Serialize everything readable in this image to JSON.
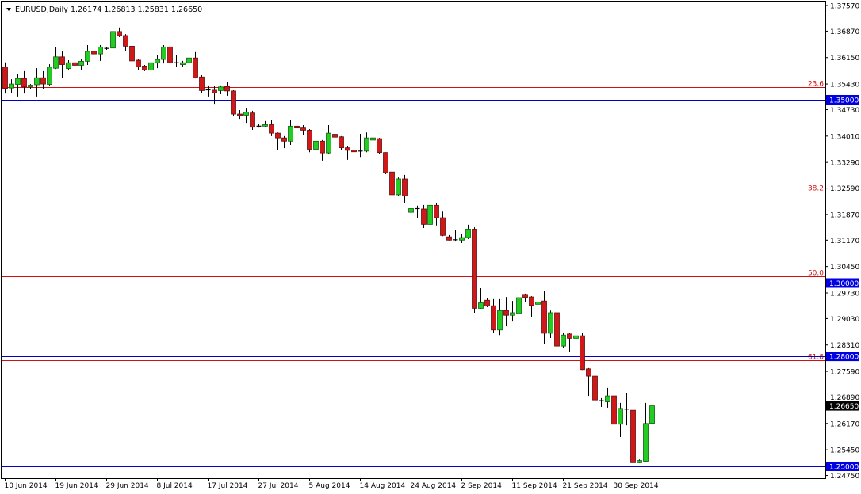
{
  "header": {
    "symbol": "EURUSD,Daily",
    "ohlc_text": "1.26174 1.26813 1.25831 1.26650"
  },
  "colors": {
    "bull": "#22cc22",
    "bear": "#d01818",
    "wick": "#000000",
    "fib_line": "#d01010",
    "level_line": "#0000c8",
    "level_label_bg": "#0000e0",
    "price_label_bg": "#000000"
  },
  "chart_data": {
    "type": "candlestick",
    "title": "EURUSD,Daily",
    "ylim": [
      1.2475,
      1.3757
    ],
    "grid": false,
    "y_ticks": [
      "1.37570",
      "1.36870",
      "1.36150",
      "1.35430",
      "1.34730",
      "1.34010",
      "1.33290",
      "1.32590",
      "1.31870",
      "1.31170",
      "1.30450",
      "1.29730",
      "1.29030",
      "1.28310",
      "1.27590",
      "1.26890",
      "1.26170",
      "1.25450",
      "1.24750"
    ],
    "x_ticks": [
      {
        "bar": 0,
        "label": "10 Jun 2014"
      },
      {
        "bar": 8,
        "label": "19 Jun 2014"
      },
      {
        "bar": 16,
        "label": "29 Jun 2014"
      },
      {
        "bar": 24,
        "label": "8 Jul 2014"
      },
      {
        "bar": 32,
        "label": "17 Jul 2014"
      },
      {
        "bar": 40,
        "label": "27 Jul 2014"
      },
      {
        "bar": 48,
        "label": "5 Aug 2014"
      },
      {
        "bar": 56,
        "label": "14 Aug 2014"
      },
      {
        "bar": 64,
        "label": "24 Aug 2014"
      },
      {
        "bar": 72,
        "label": "2 Sep 2014"
      },
      {
        "bar": 80,
        "label": "11 Sep 2014"
      },
      {
        "bar": 88,
        "label": "21 Sep 2014"
      },
      {
        "bar": 96,
        "label": "30 Sep 2014"
      }
    ],
    "fib_levels": [
      {
        "label": "23.6",
        "price": 1.3535
      },
      {
        "label": "38.2",
        "price": 1.3249
      },
      {
        "label": "50.0",
        "price": 1.3018
      },
      {
        "label": "61.8",
        "price": 1.2789
      }
    ],
    "horizontal_levels": [
      {
        "label": "1.35000",
        "price": 1.35
      },
      {
        "label": "1.30000",
        "price": 1.3
      },
      {
        "label": "1.28000",
        "price": 1.28
      },
      {
        "label": "1.25000",
        "price": 1.25
      }
    ],
    "current_price": {
      "label": "1.26650",
      "price": 1.2665
    },
    "ohlc": [
      [
        1.3589,
        1.3602,
        1.3517,
        1.3531
      ],
      [
        1.3532,
        1.3556,
        1.3519,
        1.3543
      ],
      [
        1.3542,
        1.3571,
        1.3509,
        1.3558
      ],
      [
        1.3558,
        1.3578,
        1.3517,
        1.3535
      ],
      [
        1.3535,
        1.3543,
        1.3528,
        1.354
      ],
      [
        1.3541,
        1.3586,
        1.3509,
        1.356
      ],
      [
        1.356,
        1.3578,
        1.353,
        1.3543
      ],
      [
        1.3542,
        1.3597,
        1.3539,
        1.3589
      ],
      [
        1.3586,
        1.3643,
        1.3584,
        1.3617
      ],
      [
        1.3617,
        1.3632,
        1.356,
        1.3596
      ],
      [
        1.3585,
        1.3608,
        1.358,
        1.3601
      ],
      [
        1.3601,
        1.3612,
        1.3571,
        1.3594
      ],
      [
        1.3594,
        1.3612,
        1.358,
        1.3605
      ],
      [
        1.3605,
        1.3649,
        1.3595,
        1.3632
      ],
      [
        1.3632,
        1.3647,
        1.3573,
        1.3625
      ],
      [
        1.3625,
        1.3649,
        1.3606,
        1.3644
      ],
      [
        1.364,
        1.3644,
        1.3636,
        1.3639
      ],
      [
        1.3641,
        1.3697,
        1.3634,
        1.3686
      ],
      [
        1.3686,
        1.3697,
        1.3671,
        1.3675
      ],
      [
        1.3675,
        1.3679,
        1.3632,
        1.3646
      ],
      [
        1.3646,
        1.3662,
        1.3593,
        1.3606
      ],
      [
        1.3608,
        1.361,
        1.3582,
        1.359
      ],
      [
        1.3592,
        1.3595,
        1.3578,
        1.3581
      ],
      [
        1.3581,
        1.3608,
        1.3573,
        1.3601
      ],
      [
        1.3601,
        1.3623,
        1.3586,
        1.361
      ],
      [
        1.361,
        1.3649,
        1.3599,
        1.3644
      ],
      [
        1.3644,
        1.3649,
        1.3589,
        1.3601
      ],
      [
        1.3601,
        1.3623,
        1.3589,
        1.36
      ],
      [
        1.3596,
        1.3606,
        1.3591,
        1.3601
      ],
      [
        1.3601,
        1.3638,
        1.3595,
        1.3614
      ],
      [
        1.3614,
        1.363,
        1.3558,
        1.356
      ],
      [
        1.3562,
        1.3567,
        1.3519,
        1.3525
      ],
      [
        1.3527,
        1.3539,
        1.3509,
        1.3527
      ],
      [
        1.3526,
        1.3537,
        1.3489,
        1.3519
      ],
      [
        1.3525,
        1.3539,
        1.3515,
        1.3535
      ],
      [
        1.3536,
        1.3548,
        1.3511,
        1.3524
      ],
      [
        1.3524,
        1.3526,
        1.3455,
        1.3461
      ],
      [
        1.3461,
        1.3472,
        1.3448,
        1.3457
      ],
      [
        1.3458,
        1.3476,
        1.3437,
        1.3466
      ],
      [
        1.3464,
        1.347,
        1.3418,
        1.3425
      ],
      [
        1.3428,
        1.3433,
        1.3424,
        1.3428
      ],
      [
        1.3428,
        1.3442,
        1.3426,
        1.3432
      ],
      [
        1.3432,
        1.3444,
        1.3401,
        1.3409
      ],
      [
        1.3409,
        1.3411,
        1.3364,
        1.3396
      ],
      [
        1.3396,
        1.3401,
        1.3368,
        1.3387
      ],
      [
        1.3387,
        1.3444,
        1.3377,
        1.3428
      ],
      [
        1.3428,
        1.3431,
        1.3416,
        1.3423
      ],
      [
        1.3423,
        1.3431,
        1.3405,
        1.3417
      ],
      [
        1.3417,
        1.342,
        1.3357,
        1.3365
      ],
      [
        1.3365,
        1.339,
        1.3329,
        1.3387
      ],
      [
        1.3387,
        1.339,
        1.3334,
        1.3355
      ],
      [
        1.3355,
        1.3431,
        1.3353,
        1.3409
      ],
      [
        1.3406,
        1.341,
        1.3396,
        1.3398
      ],
      [
        1.3399,
        1.3401,
        1.3362,
        1.3369
      ],
      [
        1.3369,
        1.3373,
        1.3336,
        1.3362
      ],
      [
        1.3363,
        1.3416,
        1.3338,
        1.3358
      ],
      [
        1.336,
        1.3407,
        1.3344,
        1.336
      ],
      [
        1.336,
        1.3411,
        1.3357,
        1.3396
      ],
      [
        1.339,
        1.3398,
        1.3379,
        1.3396
      ],
      [
        1.3394,
        1.3396,
        1.3351,
        1.3356
      ],
      [
        1.3356,
        1.3357,
        1.3297,
        1.3301
      ],
      [
        1.3303,
        1.3306,
        1.3236,
        1.3241
      ],
      [
        1.3241,
        1.3288,
        1.3238,
        1.3284
      ],
      [
        1.3284,
        1.3295,
        1.3217,
        1.3238
      ],
      [
        1.3193,
        1.3204,
        1.3185,
        1.3203
      ],
      [
        1.3203,
        1.3211,
        1.3176,
        1.3203
      ],
      [
        1.3202,
        1.3213,
        1.315,
        1.316
      ],
      [
        1.316,
        1.3213,
        1.3152,
        1.3212
      ],
      [
        1.3212,
        1.3219,
        1.3157,
        1.3178
      ],
      [
        1.3178,
        1.3195,
        1.3128,
        1.313
      ],
      [
        1.3126,
        1.3131,
        1.3116,
        1.3117
      ],
      [
        1.3118,
        1.3144,
        1.3113,
        1.3118
      ],
      [
        1.3117,
        1.3135,
        1.3109,
        1.3124
      ],
      [
        1.3124,
        1.3159,
        1.312,
        1.3147
      ],
      [
        1.3147,
        1.3152,
        1.2919,
        1.2931
      ],
      [
        1.2931,
        1.2986,
        1.293,
        1.2946
      ],
      [
        1.2953,
        1.2958,
        1.2934,
        1.2938
      ],
      [
        1.2938,
        1.2956,
        1.2863,
        1.2872
      ],
      [
        1.2872,
        1.2956,
        1.2858,
        1.2925
      ],
      [
        1.2925,
        1.2962,
        1.2882,
        1.2912
      ],
      [
        1.2912,
        1.2951,
        1.2895,
        1.2919
      ],
      [
        1.2917,
        1.2977,
        1.2908,
        1.296
      ],
      [
        1.2969,
        1.2971,
        1.2947,
        1.2961
      ],
      [
        1.2962,
        1.2964,
        1.2906,
        1.2939
      ],
      [
        1.2942,
        1.2995,
        1.2919,
        1.2948
      ],
      [
        1.2951,
        1.2979,
        1.2833,
        1.2863
      ],
      [
        1.2863,
        1.2925,
        1.285,
        1.2919
      ],
      [
        1.2919,
        1.2925,
        1.2824,
        1.2828
      ],
      [
        1.2828,
        1.2865,
        1.2822,
        1.2858
      ],
      [
        1.2861,
        1.2865,
        1.2813,
        1.2849
      ],
      [
        1.2849,
        1.2902,
        1.2837,
        1.2856
      ],
      [
        1.2856,
        1.2863,
        1.2763,
        1.2764
      ],
      [
        1.2766,
        1.2768,
        1.2692,
        1.2746
      ],
      [
        1.2746,
        1.2755,
        1.2673,
        1.2681
      ],
      [
        1.2679,
        1.2686,
        1.2662,
        1.2679
      ],
      [
        1.2676,
        1.2714,
        1.266,
        1.2692
      ],
      [
        1.2692,
        1.2699,
        1.2569,
        1.2615
      ],
      [
        1.2615,
        1.2673,
        1.258,
        1.2658
      ],
      [
        1.2656,
        1.2699,
        1.2612,
        1.2656
      ],
      [
        1.2653,
        1.2658,
        1.25,
        1.251
      ],
      [
        1.251,
        1.2519,
        1.2509,
        1.2516
      ],
      [
        1.2514,
        1.2673,
        1.2511,
        1.2617
      ],
      [
        1.26174,
        1.26813,
        1.25831,
        1.2665
      ]
    ]
  }
}
